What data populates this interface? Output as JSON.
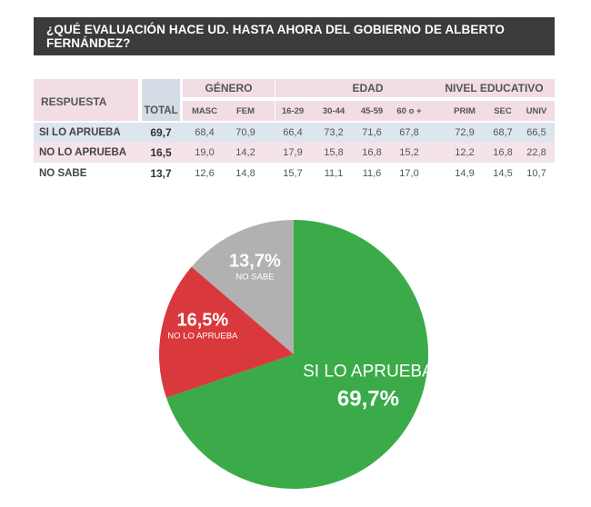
{
  "title": "¿QUÉ EVALUACIÓN HACE UD. HASTA AHORA DEL GOBIERNO DE ALBERTO FERNÁNDEZ?",
  "table": {
    "respuesta_header": "RESPUESTA",
    "total_header": "TOTAL",
    "groups": [
      {
        "label": "GÉNERO",
        "cols": [
          "MASC",
          "FEM"
        ]
      },
      {
        "label": "EDAD",
        "cols": [
          "16-29",
          "30-44",
          "45-59",
          "60 o +"
        ]
      },
      {
        "label": "NIVEL EDUCATIVO",
        "cols": [
          "PRIM",
          "SEC",
          "UNIV"
        ]
      }
    ],
    "rows": [
      {
        "label": "SI LO APRUEBA",
        "total": "69,7",
        "values": [
          "68,4",
          "70,9",
          "66,4",
          "73,2",
          "71,6",
          "67,8",
          "72,9",
          "68,7",
          "66,5"
        ]
      },
      {
        "label": "NO LO APRUEBA",
        "total": "16,5",
        "values": [
          "19,0",
          "14,2",
          "17,9",
          "15,8",
          "16,8",
          "15,2",
          "12,2",
          "16,8",
          "22,8"
        ]
      },
      {
        "label": "NO SABE",
        "total": "13,7",
        "values": [
          "12,6",
          "14,8",
          "15,7",
          "11,1",
          "11,6",
          "17,0",
          "14,9",
          "14,5",
          "10,7"
        ]
      }
    ]
  },
  "chart_data": {
    "type": "pie",
    "labels": [
      "SI LO APRUEBA",
      "NO LO APRUEBA",
      "NO SABE"
    ],
    "values": [
      69.7,
      16.5,
      13.7
    ],
    "value_labels": [
      "69,7%",
      "16,5%",
      "13,7%"
    ],
    "colors": [
      "#3aab48",
      "#d9383d",
      "#b1b1b1"
    ]
  }
}
